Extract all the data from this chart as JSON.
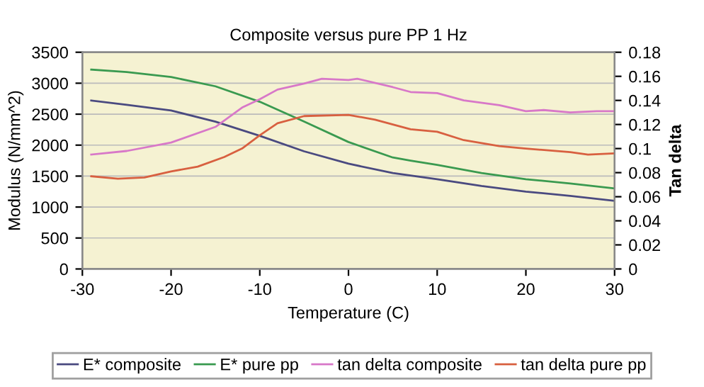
{
  "chart_data": {
    "type": "line",
    "title": "Composite versus pure PP 1 Hz",
    "xlabel": "Temperature (C)",
    "ylabel": "Modulus (N/mm^2)",
    "y2label": "Tan delta",
    "xlim": [
      -30,
      30
    ],
    "xticks": [
      -30,
      -20,
      -10,
      0,
      10,
      20,
      30
    ],
    "ylim": [
      0,
      3500
    ],
    "yticks": [
      0,
      500,
      1000,
      1500,
      2000,
      2500,
      3000,
      3500
    ],
    "y2lim": [
      0,
      0.18
    ],
    "y2ticks": [
      0,
      0.02,
      0.04,
      0.06,
      0.08,
      0.1,
      0.12,
      0.14,
      0.16,
      0.18
    ],
    "grid": "y",
    "legend": "bottom",
    "marker": "none",
    "line_style": "solid",
    "series": [
      {
        "name": "E* composite",
        "color": "#4a4a80",
        "x": [
          -29,
          -25,
          -20,
          -15,
          -10,
          -5,
          0,
          5,
          10,
          15,
          20,
          25,
          30
        ],
        "values": [
          2720,
          2650,
          2560,
          2380,
          2150,
          1900,
          1700,
          1550,
          1450,
          1340,
          1250,
          1180,
          1100
        ]
      },
      {
        "name": "E* pure pp",
        "color": "#3a9a50",
        "x": [
          -29,
          -25,
          -20,
          -15,
          -10,
          -5,
          0,
          5,
          7,
          10,
          15,
          20,
          25,
          30
        ],
        "values": [
          3220,
          3180,
          3100,
          2950,
          2700,
          2380,
          2050,
          1800,
          1750,
          1680,
          1550,
          1450,
          1380,
          1300
        ]
      },
      {
        "name": "tan delta composite",
        "axis": "y2",
        "color": "#d878c8",
        "x": [
          -29,
          -25,
          -20,
          -15,
          -12,
          -10,
          -8,
          -5,
          -3,
          0,
          1,
          5,
          7,
          10,
          13,
          17,
          20,
          22,
          25,
          28,
          30
        ],
        "values": [
          0.095,
          0.098,
          0.105,
          0.118,
          0.134,
          0.141,
          0.149,
          0.154,
          0.158,
          0.157,
          0.158,
          0.151,
          0.147,
          0.146,
          0.14,
          0.136,
          0.131,
          0.132,
          0.13,
          0.131,
          0.131
        ]
      },
      {
        "name": "tan delta pure pp",
        "axis": "y2",
        "color": "#d86040",
        "x": [
          -29,
          -26,
          -23,
          -20,
          -17,
          -14,
          -12,
          -10,
          -8,
          -5,
          0,
          3,
          7,
          10,
          13,
          17,
          20,
          25,
          27,
          30
        ],
        "values": [
          0.077,
          0.075,
          0.076,
          0.081,
          0.085,
          0.093,
          0.1,
          0.111,
          0.121,
          0.127,
          0.128,
          0.124,
          0.116,
          0.114,
          0.107,
          0.102,
          0.1,
          0.097,
          0.095,
          0.096
        ]
      }
    ]
  }
}
